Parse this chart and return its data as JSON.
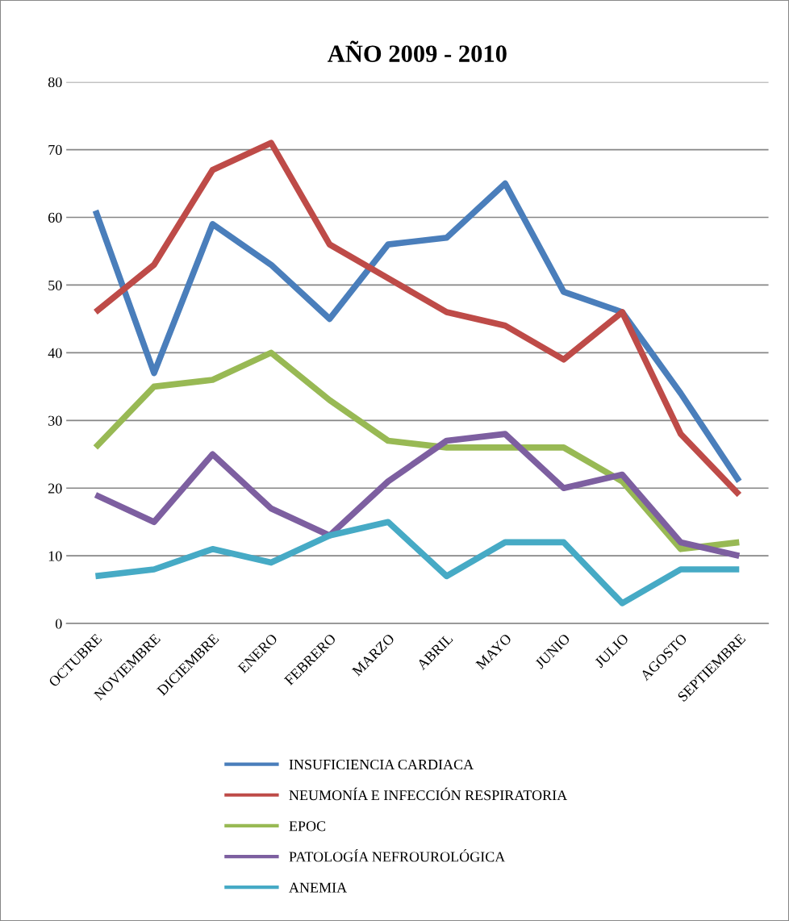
{
  "chart_data": {
    "type": "line",
    "title": "AÑO 2009 - 2010",
    "categories": [
      "OCTUBRE",
      "NOVIEMBRE",
      "DICIEMBRE",
      "ENERO",
      "FEBRERO",
      "MARZO",
      "ABRIL",
      "MAYO",
      "JUNIO",
      "JULIO",
      "AGOSTO",
      "SEPTIEMBRE"
    ],
    "series": [
      {
        "name": "INSUFICIENCIA CARDIACA",
        "color": "#4a7ebb",
        "values": [
          61,
          37,
          59,
          53,
          45,
          56,
          57,
          65,
          49,
          46,
          34,
          21
        ]
      },
      {
        "name": "NEUMONÍA E INFECCIÓN RESPIRATORIA",
        "color": "#be4b48",
        "values": [
          46,
          53,
          67,
          71,
          56,
          51,
          46,
          44,
          39,
          46,
          28,
          19
        ]
      },
      {
        "name": "EPOC",
        "color": "#98b954",
        "values": [
          26,
          35,
          36,
          40,
          33,
          27,
          26,
          26,
          26,
          21,
          11,
          12
        ]
      },
      {
        "name": "PATOLOGÍA NEFROUROLÓGICA",
        "color": "#7d5fa0",
        "values": [
          19,
          15,
          25,
          17,
          13,
          21,
          27,
          28,
          20,
          22,
          12,
          10
        ]
      },
      {
        "name": "ANEMIA",
        "color": "#46aac5",
        "values": [
          7,
          8,
          11,
          9,
          13,
          15,
          7,
          12,
          12,
          3,
          8,
          8
        ]
      }
    ],
    "ylim": [
      0,
      80
    ],
    "yticks": [
      0,
      10,
      20,
      30,
      40,
      50,
      60,
      70,
      80
    ],
    "grid": "y",
    "legend": "bottom",
    "marker": "none",
    "line_style": "solid"
  }
}
